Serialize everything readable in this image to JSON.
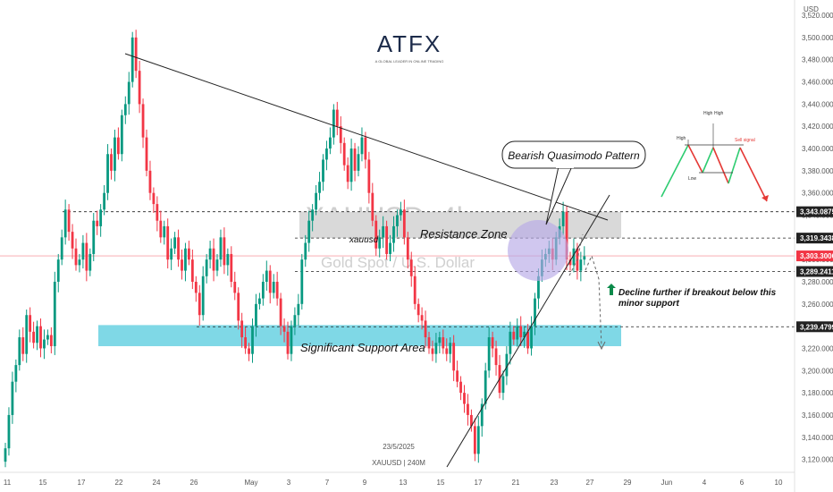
{
  "brand": {
    "logo": "ATFX",
    "tagline": "A GLOBAL LEADER IN ONLINE TRADING"
  },
  "watermark": {
    "symbol": "XAUUSD, 4h",
    "name": "Gold Spot / U.S. Dollar"
  },
  "footer": {
    "date": "23/5/2025",
    "symbol": "XAUUSD | 240M"
  },
  "annotations": {
    "pattern": "Bearish Quasimodo Pattern",
    "resistance": "Resistance Zone",
    "support": "Significant Support Area",
    "xauusd": "xauusd",
    "decline_line1": "Decline further if breakout below this",
    "decline_line2": "minor support"
  },
  "inset": {
    "high1": "High",
    "high2": "High",
    "high_left": "High",
    "low": "Low",
    "sell": "Sell signal"
  },
  "colors": {
    "up": "#089981",
    "down": "#f23645",
    "support_zone": "#7fd8e6",
    "resistance_zone": "#d9d9d9",
    "qm_circle": "#b7a9e6"
  },
  "chart_data": {
    "type": "candlestick",
    "title": "XAUUSD, 4h",
    "subtitle": "Gold Spot / U.S. Dollar",
    "currency": "USD",
    "x_ticks": [
      "11",
      "15",
      "17",
      "22",
      "24",
      "26",
      "May",
      "3",
      "7",
      "9",
      "13",
      "15",
      "17",
      "21",
      "23",
      "27",
      "29",
      "Jun",
      "4",
      "6",
      "10"
    ],
    "y_ticks": [
      3120,
      3140,
      3160,
      3180,
      3200,
      3220,
      3240,
      3260,
      3280,
      3300,
      3320,
      3340,
      3360,
      3380,
      3400,
      3420,
      3440,
      3460,
      3480,
      3500,
      3520
    ],
    "ylim": [
      3110,
      3530
    ],
    "price_tags": [
      {
        "value": 3343.0875,
        "label": "3,343.0875",
        "color": "#222222"
      },
      {
        "value": 3319.3438,
        "label": "3,319.3438",
        "color": "#222222"
      },
      {
        "value": 3303.3,
        "label": "3,303.3000",
        "color": "#f23645"
      },
      {
        "value": 3289.2411,
        "label": "3,289.2411",
        "color": "#222222"
      },
      {
        "value": 3239.4799,
        "label": "3,239.4799",
        "color": "#222222"
      }
    ],
    "zones": [
      {
        "name": "Resistance Zone",
        "from": 3319.3,
        "to": 3343.1
      },
      {
        "name": "Significant Support Area",
        "from": 3222,
        "to": 3241
      }
    ],
    "closes": [
      3130,
      3160,
      3190,
      3205,
      3230,
      3215,
      3250,
      3235,
      3225,
      3240,
      3220,
      3228,
      3232,
      3222,
      3280,
      3300,
      3320,
      3345,
      3325,
      3310,
      3295,
      3300,
      3315,
      3290,
      3305,
      3335,
      3330,
      3345,
      3360,
      3395,
      3380,
      3410,
      3395,
      3430,
      3440,
      3460,
      3500,
      3470,
      3440,
      3410,
      3380,
      3360,
      3350,
      3335,
      3320,
      3330,
      3300,
      3310,
      3320,
      3300,
      3290,
      3310,
      3300,
      3280,
      3270,
      3250,
      3285,
      3300,
      3310,
      3290,
      3300,
      3320,
      3295,
      3305,
      3280,
      3270,
      3245,
      3230,
      3220,
      3215,
      3240,
      3260,
      3265,
      3280,
      3290,
      3270,
      3280,
      3265,
      3240,
      3235,
      3215,
      3240,
      3250,
      3260,
      3300,
      3315,
      3335,
      3345,
      3360,
      3370,
      3390,
      3400,
      3410,
      3435,
      3420,
      3405,
      3385,
      3370,
      3400,
      3380,
      3395,
      3410,
      3390,
      3360,
      3335,
      3310,
      3320,
      3330,
      3305,
      3315,
      3330,
      3340,
      3345,
      3320,
      3300,
      3285,
      3260,
      3250,
      3245,
      3230,
      3220,
      3215,
      3225,
      3230,
      3220,
      3215,
      3225,
      3200,
      3190,
      3180,
      3170,
      3160,
      3150,
      3125,
      3150,
      3170,
      3200,
      3230,
      3220,
      3205,
      3180,
      3195,
      3215,
      3235,
      3228,
      3240,
      3230,
      3235,
      3220,
      3240,
      3265,
      3285,
      3300,
      3305,
      3310,
      3300,
      3320,
      3330,
      3343,
      3300,
      3295,
      3310,
      3290,
      3300,
      3303
    ]
  }
}
